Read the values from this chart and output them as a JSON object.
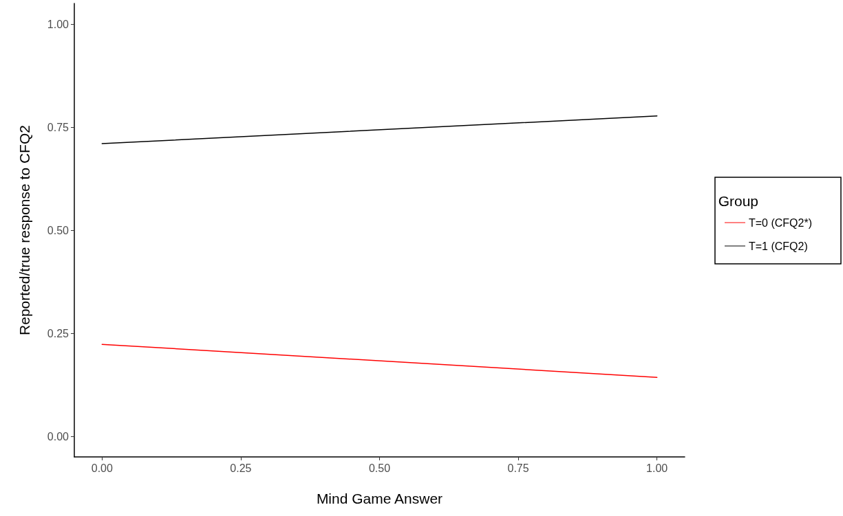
{
  "chart_data": {
    "type": "line",
    "xlabel": "Mind Game Answer",
    "ylabel": "Reported/true response to CFQ2",
    "legend_title": "Group",
    "x": [
      0,
      1
    ],
    "series": [
      {
        "name": "T=0 (CFQ2*)",
        "color": "#ff0000",
        "values": [
          0.223,
          0.143
        ]
      },
      {
        "name": "T=1 (CFQ2)",
        "color": "#000000",
        "values": [
          0.71,
          0.777
        ]
      }
    ],
    "xlim": [
      -0.05,
      1.05
    ],
    "ylim": [
      -0.05,
      1.05
    ],
    "xticks": [
      {
        "value": 0,
        "label": "0.00"
      },
      {
        "value": 0.25,
        "label": "0.25"
      },
      {
        "value": 0.5,
        "label": "0.50"
      },
      {
        "value": 0.75,
        "label": "0.75"
      },
      {
        "value": 1,
        "label": "1.00"
      }
    ],
    "yticks": [
      {
        "value": 0,
        "label": "0.00"
      },
      {
        "value": 0.25,
        "label": "0.25"
      },
      {
        "value": 0.5,
        "label": "0.50"
      },
      {
        "value": 0.75,
        "label": "0.75"
      },
      {
        "value": 1,
        "label": "1.00"
      }
    ],
    "grid": false,
    "legend": "right",
    "marker": "none",
    "line_style": "solid"
  }
}
